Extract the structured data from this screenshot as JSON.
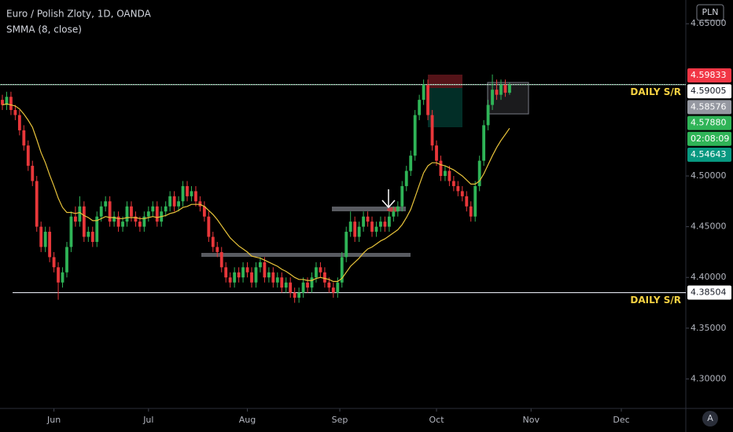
{
  "chart_data": {
    "type": "candlestick",
    "title": "Euro / Polish Zloty, 1D, OANDA",
    "currency": "PLN",
    "corner_label": "A",
    "up_color": "#2fb457",
    "down_color": "#e8373a",
    "open": [
      4.575,
      4.57,
      4.578,
      4.565,
      4.56,
      4.545,
      4.53,
      4.51,
      4.495,
      4.45,
      4.43,
      4.445,
      4.42,
      4.41,
      4.395,
      4.405,
      4.43,
      4.46,
      4.455,
      4.47,
      4.44,
      4.445,
      4.435,
      4.46,
      4.47,
      4.475,
      4.455,
      4.46,
      4.45,
      4.455,
      4.47,
      4.46,
      4.455,
      4.45,
      4.46,
      4.465,
      4.47,
      4.455,
      4.465,
      4.47,
      4.48,
      4.47,
      4.475,
      4.49,
      4.48,
      4.485,
      4.475,
      4.47,
      4.46,
      4.44,
      4.43,
      4.425,
      4.41,
      4.4,
      4.395,
      4.405,
      4.4,
      4.41,
      4.405,
      4.395,
      4.41,
      4.415,
      4.4,
      4.405,
      4.395,
      4.4,
      4.39,
      4.395,
      4.385,
      4.38,
      4.385,
      4.395,
      4.39,
      4.4,
      4.41,
      4.405,
      4.395,
      4.39,
      4.385,
      4.395,
      4.42,
      4.445,
      4.455,
      4.44,
      4.45,
      4.46,
      4.455,
      4.445,
      4.45,
      4.455,
      4.45,
      4.46,
      4.465,
      4.47,
      4.49,
      4.505,
      4.52,
      4.56,
      4.575,
      4.59,
      4.56,
      4.53,
      4.515,
      4.5,
      4.505,
      4.495,
      4.49,
      4.485,
      4.48,
      4.47,
      4.46,
      4.49,
      4.515,
      4.55,
      4.57,
      4.585,
      4.58,
      4.59,
      4.582
    ],
    "high": [
      4.58,
      4.583,
      4.583,
      4.57,
      4.565,
      4.55,
      4.535,
      4.515,
      4.5,
      4.455,
      4.45,
      4.45,
      4.425,
      4.415,
      4.41,
      4.435,
      4.465,
      4.47,
      4.48,
      4.475,
      4.45,
      4.45,
      4.465,
      4.475,
      4.48,
      4.48,
      4.465,
      4.465,
      4.46,
      4.475,
      4.475,
      4.465,
      4.46,
      4.465,
      4.47,
      4.475,
      4.475,
      4.47,
      4.475,
      4.485,
      4.485,
      4.48,
      4.495,
      4.495,
      4.49,
      4.49,
      4.48,
      4.475,
      4.465,
      4.445,
      4.435,
      4.43,
      4.415,
      4.405,
      4.41,
      4.41,
      4.415,
      4.415,
      4.41,
      4.415,
      4.42,
      4.42,
      4.41,
      4.41,
      4.405,
      4.405,
      4.4,
      4.4,
      4.39,
      4.39,
      4.4,
      4.4,
      4.405,
      4.415,
      4.415,
      4.41,
      4.4,
      4.395,
      4.4,
      4.425,
      4.45,
      4.465,
      4.46,
      4.455,
      4.465,
      4.465,
      4.46,
      4.455,
      4.46,
      4.46,
      4.465,
      4.47,
      4.475,
      4.495,
      4.51,
      4.525,
      4.565,
      4.58,
      4.595,
      4.595,
      4.565,
      4.535,
      4.52,
      4.51,
      4.51,
      4.5,
      4.495,
      4.49,
      4.485,
      4.475,
      4.495,
      4.52,
      4.555,
      4.575,
      4.6,
      4.595,
      4.595,
      4.595,
      4.592
    ],
    "low": [
      4.565,
      4.565,
      4.56,
      4.555,
      4.54,
      4.525,
      4.505,
      4.49,
      4.445,
      4.425,
      4.425,
      4.415,
      4.405,
      4.378,
      4.39,
      4.4,
      4.425,
      4.45,
      4.45,
      4.435,
      4.435,
      4.43,
      4.43,
      4.455,
      4.465,
      4.45,
      4.45,
      4.445,
      4.445,
      4.45,
      4.455,
      4.45,
      4.445,
      4.445,
      4.455,
      4.46,
      4.45,
      4.45,
      4.46,
      4.465,
      4.465,
      4.465,
      4.47,
      4.475,
      4.475,
      4.47,
      4.465,
      4.455,
      4.435,
      4.425,
      4.42,
      4.405,
      4.395,
      4.39,
      4.39,
      4.395,
      4.395,
      4.4,
      4.39,
      4.39,
      4.405,
      4.395,
      4.395,
      4.39,
      4.39,
      4.385,
      4.385,
      4.38,
      4.375,
      4.375,
      4.38,
      4.385,
      4.385,
      4.395,
      4.4,
      4.39,
      4.385,
      4.38,
      4.38,
      4.39,
      4.415,
      4.44,
      4.435,
      4.435,
      4.445,
      4.45,
      4.44,
      4.44,
      4.445,
      4.445,
      4.445,
      4.455,
      4.46,
      4.465,
      4.485,
      4.5,
      4.515,
      4.555,
      4.57,
      4.555,
      4.525,
      4.51,
      4.495,
      4.495,
      4.49,
      4.485,
      4.48,
      4.475,
      4.465,
      4.455,
      4.455,
      4.485,
      4.51,
      4.545,
      4.565,
      4.575,
      4.575,
      4.578,
      4.58
    ],
    "close": [
      4.57,
      4.578,
      4.565,
      4.56,
      4.545,
      4.53,
      4.51,
      4.495,
      4.45,
      4.43,
      4.445,
      4.42,
      4.41,
      4.395,
      4.405,
      4.43,
      4.46,
      4.455,
      4.47,
      4.44,
      4.445,
      4.435,
      4.46,
      4.47,
      4.475,
      4.455,
      4.46,
      4.45,
      4.455,
      4.47,
      4.46,
      4.455,
      4.45,
      4.46,
      4.465,
      4.47,
      4.455,
      4.465,
      4.47,
      4.48,
      4.47,
      4.475,
      4.49,
      4.48,
      4.485,
      4.475,
      4.47,
      4.46,
      4.44,
      4.43,
      4.425,
      4.41,
      4.4,
      4.395,
      4.405,
      4.4,
      4.41,
      4.405,
      4.395,
      4.41,
      4.415,
      4.4,
      4.405,
      4.395,
      4.4,
      4.39,
      4.395,
      4.385,
      4.38,
      4.385,
      4.395,
      4.39,
      4.4,
      4.41,
      4.405,
      4.395,
      4.39,
      4.385,
      4.395,
      4.42,
      4.445,
      4.455,
      4.44,
      4.45,
      4.46,
      4.455,
      4.445,
      4.45,
      4.455,
      4.45,
      4.46,
      4.465,
      4.47,
      4.49,
      4.505,
      4.52,
      4.56,
      4.575,
      4.59,
      4.56,
      4.53,
      4.515,
      4.5,
      4.505,
      4.495,
      4.49,
      4.485,
      4.48,
      4.47,
      4.46,
      4.49,
      4.515,
      4.55,
      4.57,
      4.585,
      4.58,
      4.59,
      4.582,
      4.59
    ],
    "series": [
      {
        "name": "SMMA (8, close)",
        "color": "#e8c33a",
        "values": [
          4.57,
          4.571,
          4.57,
          4.569,
          4.566,
          4.561,
          4.555,
          4.548,
          4.536,
          4.523,
          4.513,
          4.501,
          4.49,
          4.478,
          4.469,
          4.464,
          4.464,
          4.463,
          4.464,
          4.461,
          4.459,
          4.456,
          4.456,
          4.458,
          4.46,
          4.459,
          4.459,
          4.458,
          4.458,
          4.459,
          4.459,
          4.459,
          4.458,
          4.458,
          4.459,
          4.46,
          4.459,
          4.46,
          4.461,
          4.463,
          4.464,
          4.466,
          4.469,
          4.47,
          4.472,
          4.472,
          4.472,
          4.47,
          4.466,
          4.462,
          4.457,
          4.451,
          4.445,
          4.439,
          4.435,
          4.431,
          4.428,
          4.425,
          4.421,
          4.42,
          4.419,
          4.417,
          4.415,
          4.413,
          4.411,
          4.408,
          4.406,
          4.403,
          4.4,
          4.398,
          4.398,
          4.397,
          4.397,
          4.399,
          4.4,
          4.399,
          4.398,
          4.396,
          4.396,
          4.399,
          4.405,
          4.411,
          4.415,
          4.419,
          4.424,
          4.428,
          4.43,
          4.433,
          4.436,
          4.438,
          4.441,
          4.444,
          4.447,
          4.452,
          4.459,
          4.467,
          4.479,
          4.491,
          4.503,
          4.51,
          4.513,
          4.513,
          4.511,
          4.51,
          4.508,
          4.506,
          4.503,
          4.5,
          4.496,
          4.492,
          4.492,
          4.495,
          4.502,
          4.511,
          4.52,
          4.528,
          4.535,
          4.541,
          4.547
        ]
      }
    ],
    "xlim": [
      -0.55,
      159
    ],
    "xticks": [
      {
        "value": 12,
        "label": "Jun"
      },
      {
        "value": 34,
        "label": "Jul"
      },
      {
        "value": 57,
        "label": "Aug"
      },
      {
        "value": 78.5,
        "label": "Sep"
      },
      {
        "value": 101,
        "label": "Oct"
      },
      {
        "value": 123,
        "label": "Nov"
      },
      {
        "value": 144,
        "label": "Dec"
      }
    ],
    "ylim": [
      4.2709,
      4.6734
    ],
    "yticks": [
      {
        "value": 4.65,
        "label": "4.65000"
      },
      {
        "value": 4.5,
        "label": "4.50000"
      },
      {
        "value": 4.45,
        "label": "4.45000"
      },
      {
        "value": 4.4,
        "label": "4.40000"
      },
      {
        "value": 4.35,
        "label": "4.35000"
      },
      {
        "value": 4.3,
        "label": "4.30000"
      }
    ],
    "levels": [
      {
        "value": 4.59005,
        "text": "DAILY S/R"
      },
      {
        "value": 4.38504,
        "text": "DAILY S/R"
      }
    ],
    "price_labels": [
      {
        "label": "4.59833",
        "color": "#f23645"
      },
      {
        "label": "4.58576",
        "color": "#9598a1"
      },
      {
        "label": "4.57880",
        "color": "#2fb457"
      },
      {
        "label": "02:08:09",
        "color": "#2fb457"
      },
      {
        "label": "4.54643",
        "color": "#089981"
      }
    ]
  }
}
